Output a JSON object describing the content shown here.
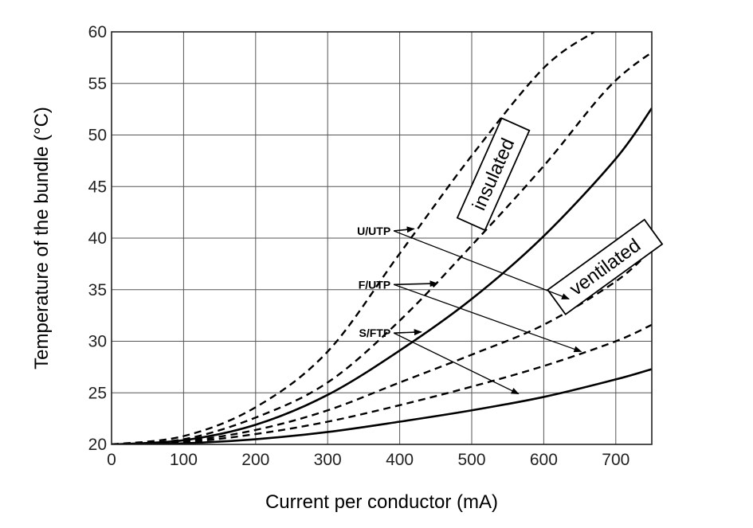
{
  "chart_data": {
    "type": "line",
    "title": "",
    "xlabel": "Current per conductor (mA)",
    "ylabel": "Temperature of the bundle (°C)",
    "xlim": [
      0,
      750
    ],
    "ylim": [
      20,
      60
    ],
    "xticks": [
      0,
      100,
      200,
      300,
      400,
      500,
      600,
      700
    ],
    "yticks": [
      20,
      25,
      30,
      35,
      40,
      45,
      50,
      55,
      60
    ],
    "grid": true,
    "legend": "none",
    "series": [
      {
        "group": "insulated",
        "cable": "U/UTP",
        "style": "dashed",
        "x": [
          0,
          100,
          200,
          300,
          400,
          500,
          600,
          670
        ],
        "y": [
          20,
          20.8,
          23.6,
          29.0,
          38.5,
          48.0,
          56.5,
          60
        ]
      },
      {
        "group": "insulated",
        "cable": "F/UTP",
        "style": "dashed",
        "x": [
          0,
          100,
          200,
          300,
          400,
          500,
          600,
          700,
          795
        ],
        "y": [
          20,
          20.5,
          22.6,
          26.0,
          32.0,
          39.3,
          47.0,
          55.3,
          60
        ]
      },
      {
        "group": "insulated",
        "cable": "S/FTP",
        "style": "solid",
        "x": [
          0,
          100,
          200,
          300,
          400,
          500,
          600,
          700,
          750
        ],
        "y": [
          20,
          20.4,
          21.9,
          24.8,
          29.1,
          34.1,
          40.2,
          47.7,
          52.6
        ]
      },
      {
        "group": "ventilated",
        "cable": "U/UTP",
        "style": "dashed",
        "x": [
          0,
          100,
          200,
          300,
          400,
          500,
          600,
          700,
          750
        ],
        "y": [
          20,
          20.3,
          21.4,
          23.3,
          26.0,
          28.7,
          31.6,
          35.8,
          38.9
        ]
      },
      {
        "group": "ventilated",
        "cable": "F/UTP",
        "style": "dashed",
        "x": [
          0,
          100,
          200,
          300,
          400,
          500,
          600,
          700,
          750
        ],
        "y": [
          20,
          20.2,
          21.0,
          22.2,
          23.8,
          25.6,
          27.6,
          30.0,
          31.6
        ]
      },
      {
        "group": "ventilated",
        "cable": "S/FTP",
        "style": "solid",
        "x": [
          0,
          100,
          200,
          300,
          400,
          500,
          600,
          700,
          750
        ],
        "y": [
          20,
          20.1,
          20.5,
          21.2,
          22.2,
          23.3,
          24.6,
          26.3,
          27.3
        ]
      }
    ],
    "annotations": {
      "boxes": [
        {
          "text": "insulated",
          "x": 530,
          "y": 46.2,
          "angle": -66
        },
        {
          "text": "ventilated",
          "x": 685,
          "y": 37.2,
          "angle": -36
        }
      ],
      "cables": [
        {
          "text": "U/UTP",
          "x": 290,
          "y": 40.7,
          "arrows": [
            {
              "x": 420,
              "y": 40.9
            },
            {
              "x": 635,
              "y": 34.1
            }
          ]
        },
        {
          "text": "F/UTP",
          "x": 290,
          "y": 35.5,
          "arrows": [
            {
              "x": 452,
              "y": 35.6
            },
            {
              "x": 652,
              "y": 29.0
            }
          ]
        },
        {
          "text": "S/FTP",
          "x": 290,
          "y": 30.8,
          "arrows": [
            {
              "x": 430,
              "y": 30.9
            },
            {
              "x": 565,
              "y": 24.9
            }
          ]
        }
      ]
    }
  }
}
